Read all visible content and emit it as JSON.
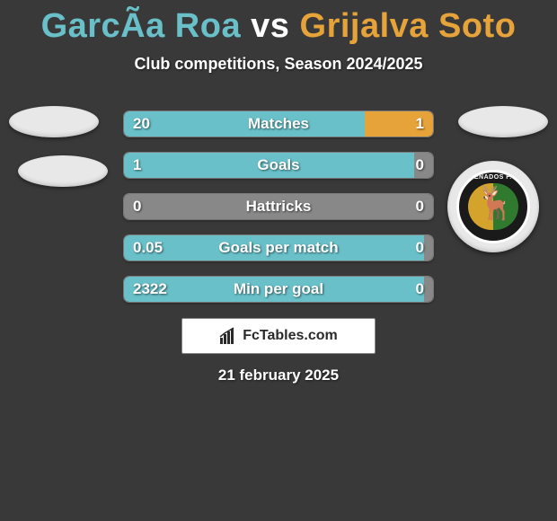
{
  "title": {
    "player1": "GarcÃ­a Roa",
    "vs": "vs",
    "player2": "Grijalva Soto",
    "color1": "#69c0c9",
    "color_vs": "#ffffff",
    "color2": "#e6a33a"
  },
  "subtitle": "Club competitions, Season 2024/2025",
  "colors": {
    "left": "#69c0c9",
    "right": "#e6a33a",
    "neutral": "#888888",
    "background": "#393939"
  },
  "bars": [
    {
      "label": "Matches",
      "left_val": "20",
      "right_val": "1",
      "left_pct": 78,
      "right_color": "#e6a33a"
    },
    {
      "label": "Goals",
      "left_val": "1",
      "right_val": "0",
      "left_pct": 94,
      "right_color": "#888888"
    },
    {
      "label": "Hattricks",
      "left_val": "0",
      "right_val": "0",
      "left_pct": 3,
      "right_color": "#888888",
      "left_color_override": "#888888"
    },
    {
      "label": "Goals per match",
      "left_val": "0.05",
      "right_val": "0",
      "left_pct": 97,
      "right_color": "#888888"
    },
    {
      "label": "Min per goal",
      "left_val": "2322",
      "right_val": "0",
      "left_pct": 97,
      "right_color": "#888888"
    }
  ],
  "badge": {
    "top_text": "VENADOS F.C",
    "deer_glyph": "🦌"
  },
  "footer": "FcTables.com",
  "date": "21 february 2025"
}
